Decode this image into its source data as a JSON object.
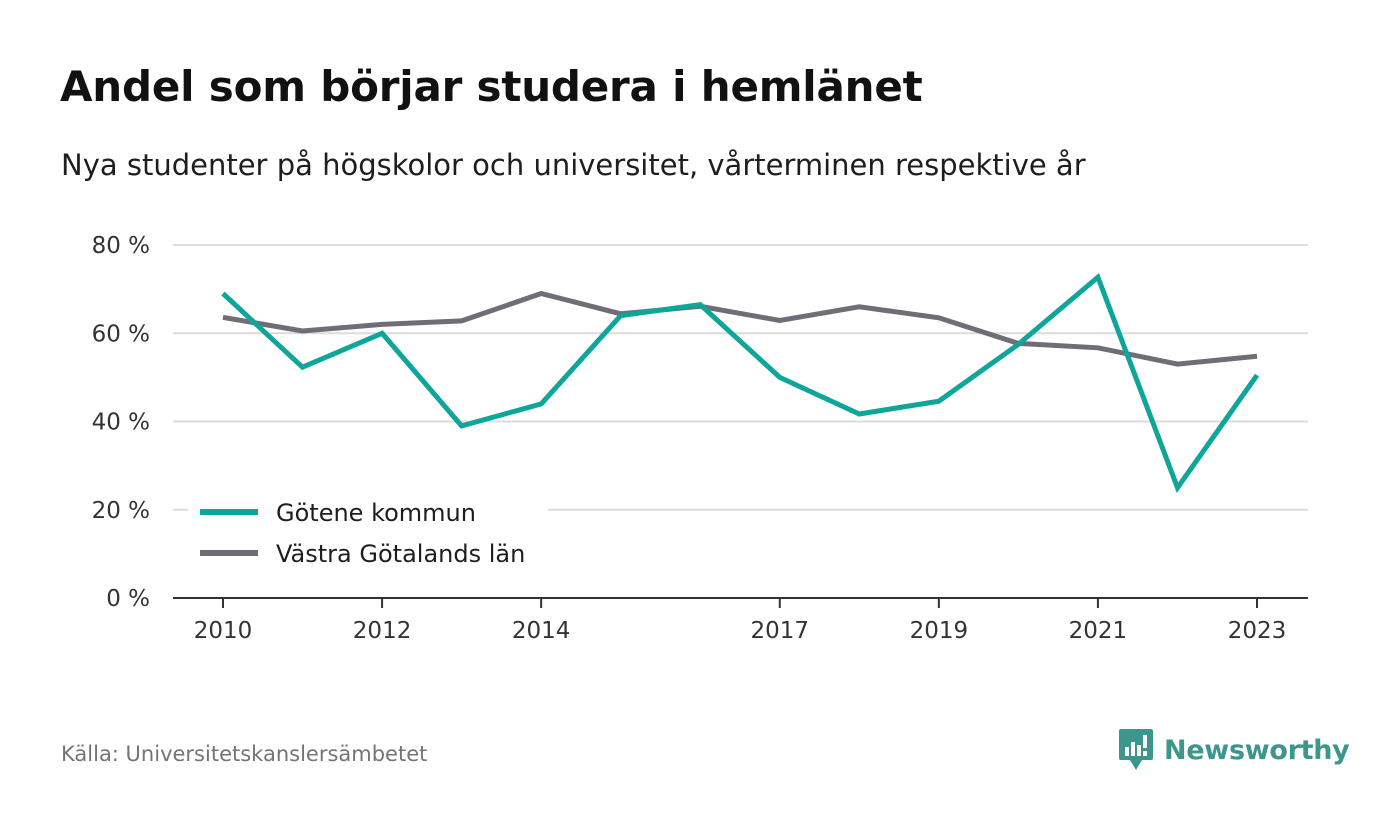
{
  "header": {
    "title": "Andel som börjar studera i hemlänet",
    "subtitle": "Nya studenter på högskolor och universitet, vårterminen respektive år"
  },
  "footer": {
    "source": "Källa: Universitetskanslersämbetet",
    "brand": "Newsworthy",
    "brand_icon": "bar-chart-speech-bubble-icon"
  },
  "colors": {
    "series_gotene": "#0ea59a",
    "series_vastra": "#6f6e76",
    "grid": "#dcdcdc",
    "axis": "#333333",
    "brand": "#3c968b"
  },
  "chart_data": {
    "type": "line",
    "title": "Andel som börjar studera i hemlänet",
    "subtitle": "Nya studenter på högskolor och universitet, vårterminen respektive år",
    "x": [
      2010,
      2011,
      2012,
      2013,
      2014,
      2015,
      2016,
      2017,
      2018,
      2019,
      2020,
      2021,
      2022,
      2023
    ],
    "x_tick_labels": [
      "2010",
      "2012",
      "2014",
      "2017",
      "2019",
      "2021",
      "2023"
    ],
    "y_ticks": [
      0,
      20,
      40,
      60,
      80
    ],
    "y_tick_labels": [
      "0 %",
      "20 %",
      "40 %",
      "60 %",
      "80 %"
    ],
    "ylim": [
      0,
      80
    ],
    "grid": true,
    "legend_position": "bottom-left",
    "series": [
      {
        "name": "Götene kommun",
        "values": [
          69,
          52.3,
          60,
          39,
          44,
          64,
          66.5,
          50,
          41.7,
          44.6,
          57.5,
          72.7,
          25,
          50.5
        ]
      },
      {
        "name": "Västra Götalands län",
        "values": [
          63.6,
          60.5,
          62,
          62.8,
          69,
          64.4,
          66.1,
          62.9,
          66,
          63.5,
          57.7,
          56.7,
          53,
          54.8
        ]
      }
    ]
  }
}
